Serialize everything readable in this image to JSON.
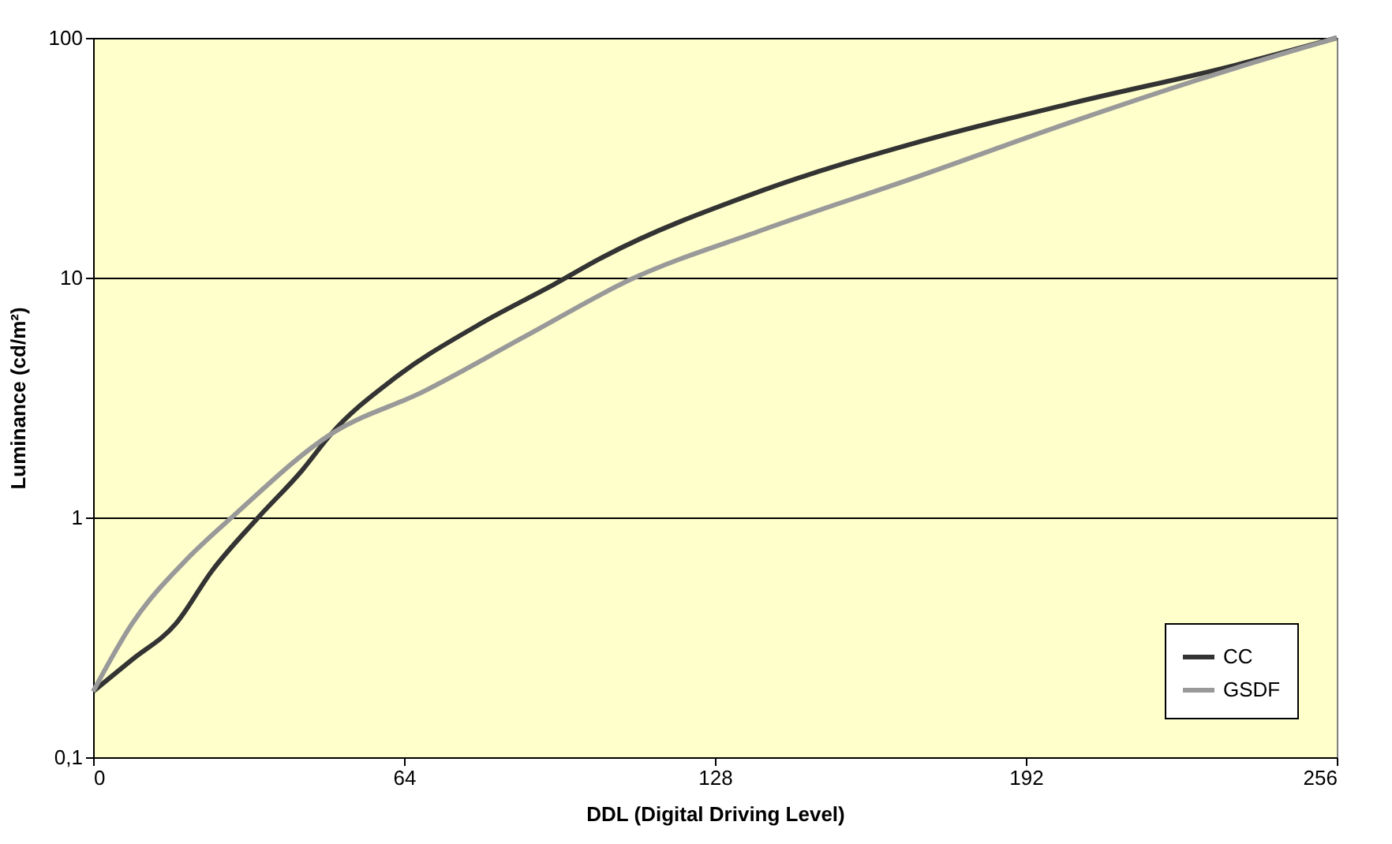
{
  "chart_data": {
    "type": "line",
    "xlabel": "DDL (Digital Driving Level)",
    "ylabel": "Luminance (cd/m²)",
    "xlim": [
      0,
      256
    ],
    "xticks": [
      0,
      64,
      128,
      192,
      256
    ],
    "ylim": [
      0.1,
      100
    ],
    "yticks": [
      {
        "value": 0.1,
        "label": "0,1"
      },
      1,
      10,
      100
    ],
    "log": "y",
    "grid": "y",
    "legend": "bottom right",
    "line_style": "solid",
    "marker": "none",
    "series": [
      {
        "name": "CC",
        "color": "#333333",
        "x": [
          0,
          8,
          17,
          24.5,
          34,
          43,
          49,
          62,
          79,
          95,
          105,
          137,
          170,
          202,
          235,
          256
        ],
        "values": [
          0.188,
          0.255,
          0.36,
          0.6,
          1.0,
          1.57,
          2.23,
          3.8,
          6.3,
          9.4,
          12.2,
          22.8,
          36.8,
          53.7,
          76.8,
          100
        ]
      },
      {
        "name": "GSDF",
        "color": "#999999",
        "x": [
          0,
          8,
          19,
          29,
          49,
          68,
          89,
          111,
          137,
          170,
          202,
          235,
          256
        ],
        "values": [
          0.188,
          0.36,
          0.66,
          1.02,
          2.23,
          3.35,
          5.7,
          9.9,
          15.6,
          26.5,
          45,
          74.7,
          100
        ]
      }
    ]
  }
}
